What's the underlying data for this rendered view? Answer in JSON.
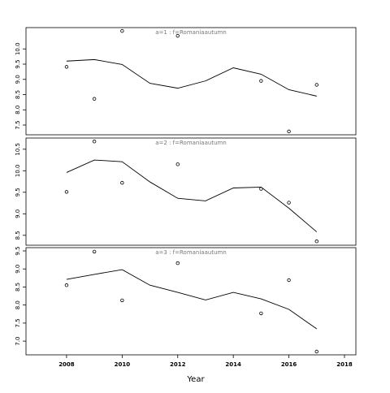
{
  "chart_data": [
    {
      "type": "line",
      "title": "a=1  :  f=Romaniaautumn",
      "x": [
        2008,
        2009,
        2010,
        2011,
        2012,
        2013,
        2014,
        2015,
        2016,
        2017
      ],
      "values": [
        9.6,
        9.65,
        9.49,
        8.87,
        8.71,
        8.95,
        9.38,
        9.17,
        8.66,
        8.45
      ],
      "points": {
        "x": [
          2008,
          2009,
          2010,
          2012,
          2015,
          2016,
          2017
        ],
        "values": [
          9.41,
          8.36,
          10.59,
          10.43,
          8.95,
          7.29,
          8.82
        ]
      },
      "xlim": [
        2006.54,
        2018.41
      ],
      "ylim": [
        7.18,
        10.7
      ],
      "yticks": [
        7.5,
        {
          "value": 8,
          "label": "8.0"
        },
        8.5,
        {
          "value": 9,
          "label": "9.0"
        },
        9.5,
        {
          "value": 10,
          "label": "10.0"
        }
      ],
      "color": "#000000"
    },
    {
      "type": "line",
      "title": "a=2  :  f=Romaniaautumn",
      "x": [
        2008,
        2009,
        2010,
        2011,
        2012,
        2013,
        2014,
        2015,
        2016,
        2017
      ],
      "values": [
        9.96,
        10.25,
        10.21,
        9.74,
        9.36,
        9.3,
        9.6,
        9.62,
        9.13,
        8.58
      ],
      "points": {
        "x": [
          2008,
          2009,
          2010,
          2012,
          2015,
          2016,
          2017
        ],
        "values": [
          9.51,
          10.68,
          9.72,
          10.15,
          9.58,
          9.26,
          8.36
        ]
      },
      "xlim": [
        2006.54,
        2018.41
      ],
      "ylim": [
        8.27,
        10.76
      ],
      "yticks": [
        8.5,
        {
          "value": 9,
          "label": "9.0"
        },
        9.5,
        {
          "value": 10,
          "label": "10.0"
        },
        10.5
      ],
      "color": "#000000"
    },
    {
      "type": "line",
      "title": "a=3  :  f=Romaniaautumn",
      "x": [
        2008,
        2009,
        2010,
        2011,
        2012,
        2013,
        2014,
        2015,
        2016,
        2017
      ],
      "values": [
        8.71,
        8.85,
        8.98,
        8.55,
        8.35,
        8.14,
        8.35,
        8.17,
        7.88,
        7.34
      ],
      "points": {
        "x": [
          2008,
          2009,
          2010,
          2012,
          2015,
          2016,
          2017
        ],
        "values": [
          8.55,
          9.48,
          8.13,
          9.16,
          7.77,
          8.69,
          6.71
        ]
      },
      "xlim": [
        2006.54,
        2018.41
      ],
      "ylim": [
        6.62,
        9.59
      ],
      "yticks": [
        {
          "value": 7,
          "label": "7.0"
        },
        7.5,
        {
          "value": 8,
          "label": "8.0"
        },
        8.5,
        {
          "value": 9,
          "label": "9.0"
        },
        9.5
      ],
      "xticks": [
        2008,
        2010,
        2012,
        2014,
        2016,
        2018
      ],
      "xlabel": "Year",
      "color": "#000000"
    }
  ]
}
